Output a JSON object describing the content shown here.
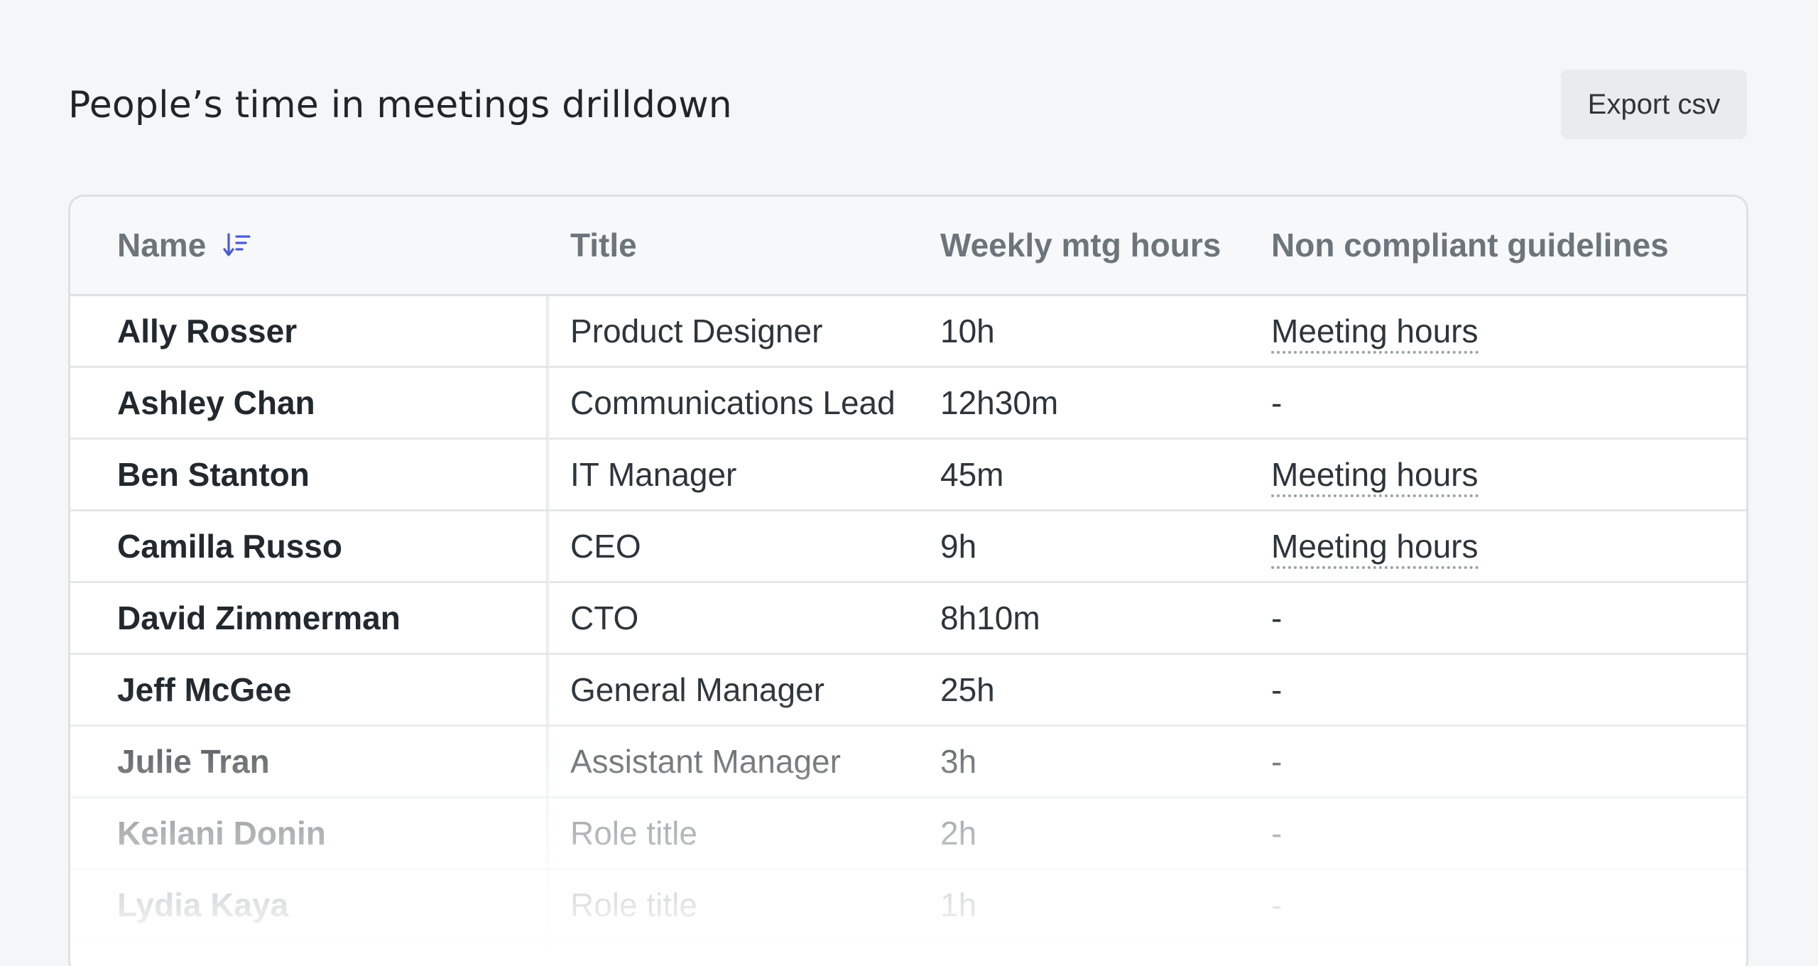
{
  "page": {
    "title": "People’s time in meetings drilldown",
    "export_label": "Export csv"
  },
  "table": {
    "headers": {
      "name": "Name",
      "title": "Title",
      "hours": "Weekly mtg hours",
      "non_compliant": "Non compliant guidelines"
    },
    "sort": {
      "column": "name",
      "icon": "sort-descending-icon"
    },
    "rows": [
      {
        "name": "Ally Rosser",
        "title": "Product Designer",
        "hours": "10h",
        "non_compliant": "Meeting hours"
      },
      {
        "name": "Ashley Chan",
        "title": "Communications Lead",
        "hours": "12h30m",
        "non_compliant": "-"
      },
      {
        "name": "Ben Stanton",
        "title": "IT Manager",
        "hours": "45m",
        "non_compliant": "Meeting hours"
      },
      {
        "name": "Camilla Russo",
        "title": "CEO",
        "hours": "9h",
        "non_compliant": "Meeting hours"
      },
      {
        "name": "David Zimmerman",
        "title": "CTO",
        "hours": "8h10m",
        "non_compliant": "-"
      },
      {
        "name": "Jeff McGee",
        "title": "General Manager",
        "hours": "25h",
        "non_compliant": "-"
      },
      {
        "name": "Julie Tran",
        "title": "Assistant Manager",
        "hours": "3h",
        "non_compliant": "-"
      },
      {
        "name": "Keilani Donin",
        "title": "Role title",
        "hours": "2h",
        "non_compliant": "-"
      },
      {
        "name": "Lydia Kaya",
        "title": "Role title",
        "hours": "1h",
        "non_compliant": "-"
      }
    ]
  },
  "colors": {
    "accent": "#4a5bd6",
    "text": "#22292e",
    "muted": "#6c757b",
    "border": "#dde1e4"
  }
}
